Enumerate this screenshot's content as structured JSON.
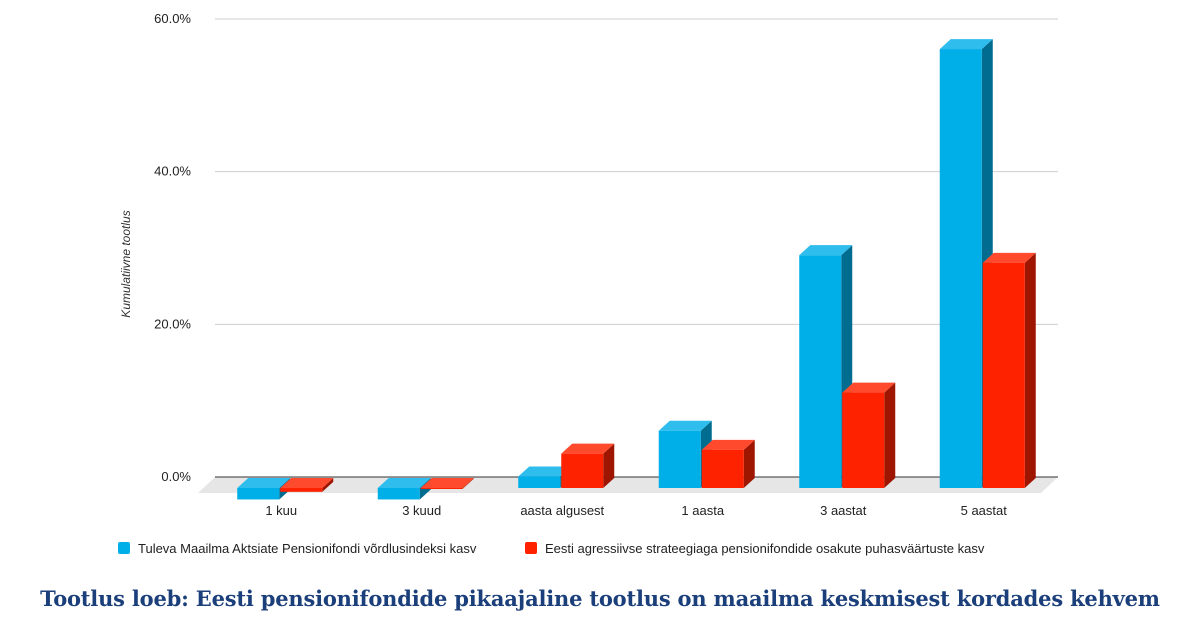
{
  "chart_data": {
    "type": "bar",
    "style": "3d-clustered-column",
    "categories": [
      "1 kuu",
      "3 kuud",
      "aasta algusest",
      "1 aasta",
      "3 aastat",
      "5 aastat"
    ],
    "series": [
      {
        "name": "Tuleva Maailma Aktsiate Pensionifondi võrdlusindeksi kasv",
        "color": "#00aee8",
        "values": [
          -1.5,
          -1.5,
          1.5,
          7.5,
          30.5,
          57.5
        ]
      },
      {
        "name": "Eesti agressiivse strateegiaga pensionifondide osakute puhasväärtuste kasv",
        "color": "#ff2200",
        "values": [
          -0.5,
          -0.1,
          4.5,
          5.0,
          12.5,
          29.5
        ]
      }
    ],
    "ylabel": "Kumulatiivne tootlus",
    "xlabel": "",
    "ylim": [
      0,
      60
    ],
    "yticks": [
      "0.0%",
      "20.0%",
      "40.0%",
      "60.0%"
    ],
    "ytick_values": [
      0,
      20,
      40,
      60
    ],
    "grid": true,
    "legend_position": "bottom"
  },
  "footer": {
    "title": "Tootlus loeb: Eesti pensionifondide pikaajaline tootlus on maailma keskmisest kordades kehvem"
  }
}
